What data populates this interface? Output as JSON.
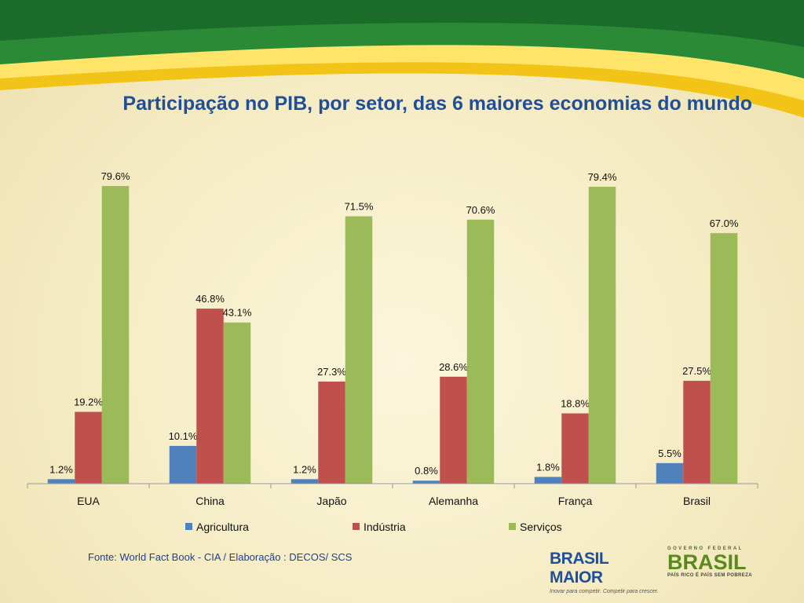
{
  "slide": {
    "title": "Participação no PIB, por setor, das 6 maiores economias do mundo",
    "source": "Fonte: World Fact Book - CIA /  Elaboração : DECOS/ SCS",
    "logos": {
      "brasil_maior": "BRASIL MAIOR",
      "brasil_maior_slogan": "Inovar para competir. Competir para crescer.",
      "governo_federal": "GOVERNO FEDERAL",
      "brasil": "BRASIL",
      "brasil_slogan": "PAÍS RICO É PAÍS SEM POBREZA"
    }
  },
  "chart_data": {
    "type": "bar",
    "title": "Participação no PIB, por setor, das 6 maiores economias do mundo",
    "categories": [
      "EUA",
      "China",
      "Japão",
      "Alemanha",
      "França",
      "Brasil"
    ],
    "series": [
      {
        "name": "Agricultura",
        "color": "#4f81bd",
        "values": [
          1.2,
          10.1,
          1.2,
          0.8,
          1.8,
          5.5
        ]
      },
      {
        "name": "Indústria",
        "color": "#c0504d",
        "values": [
          19.2,
          46.8,
          27.3,
          28.6,
          18.8,
          27.5
        ]
      },
      {
        "name": "Serviços",
        "color": "#9bbb59",
        "values": [
          79.6,
          43.1,
          71.5,
          70.6,
          79.4,
          67.0
        ]
      }
    ],
    "value_format": "percent_1dp",
    "ylim": [
      0,
      80
    ],
    "grid": false,
    "legend": "bottom"
  }
}
